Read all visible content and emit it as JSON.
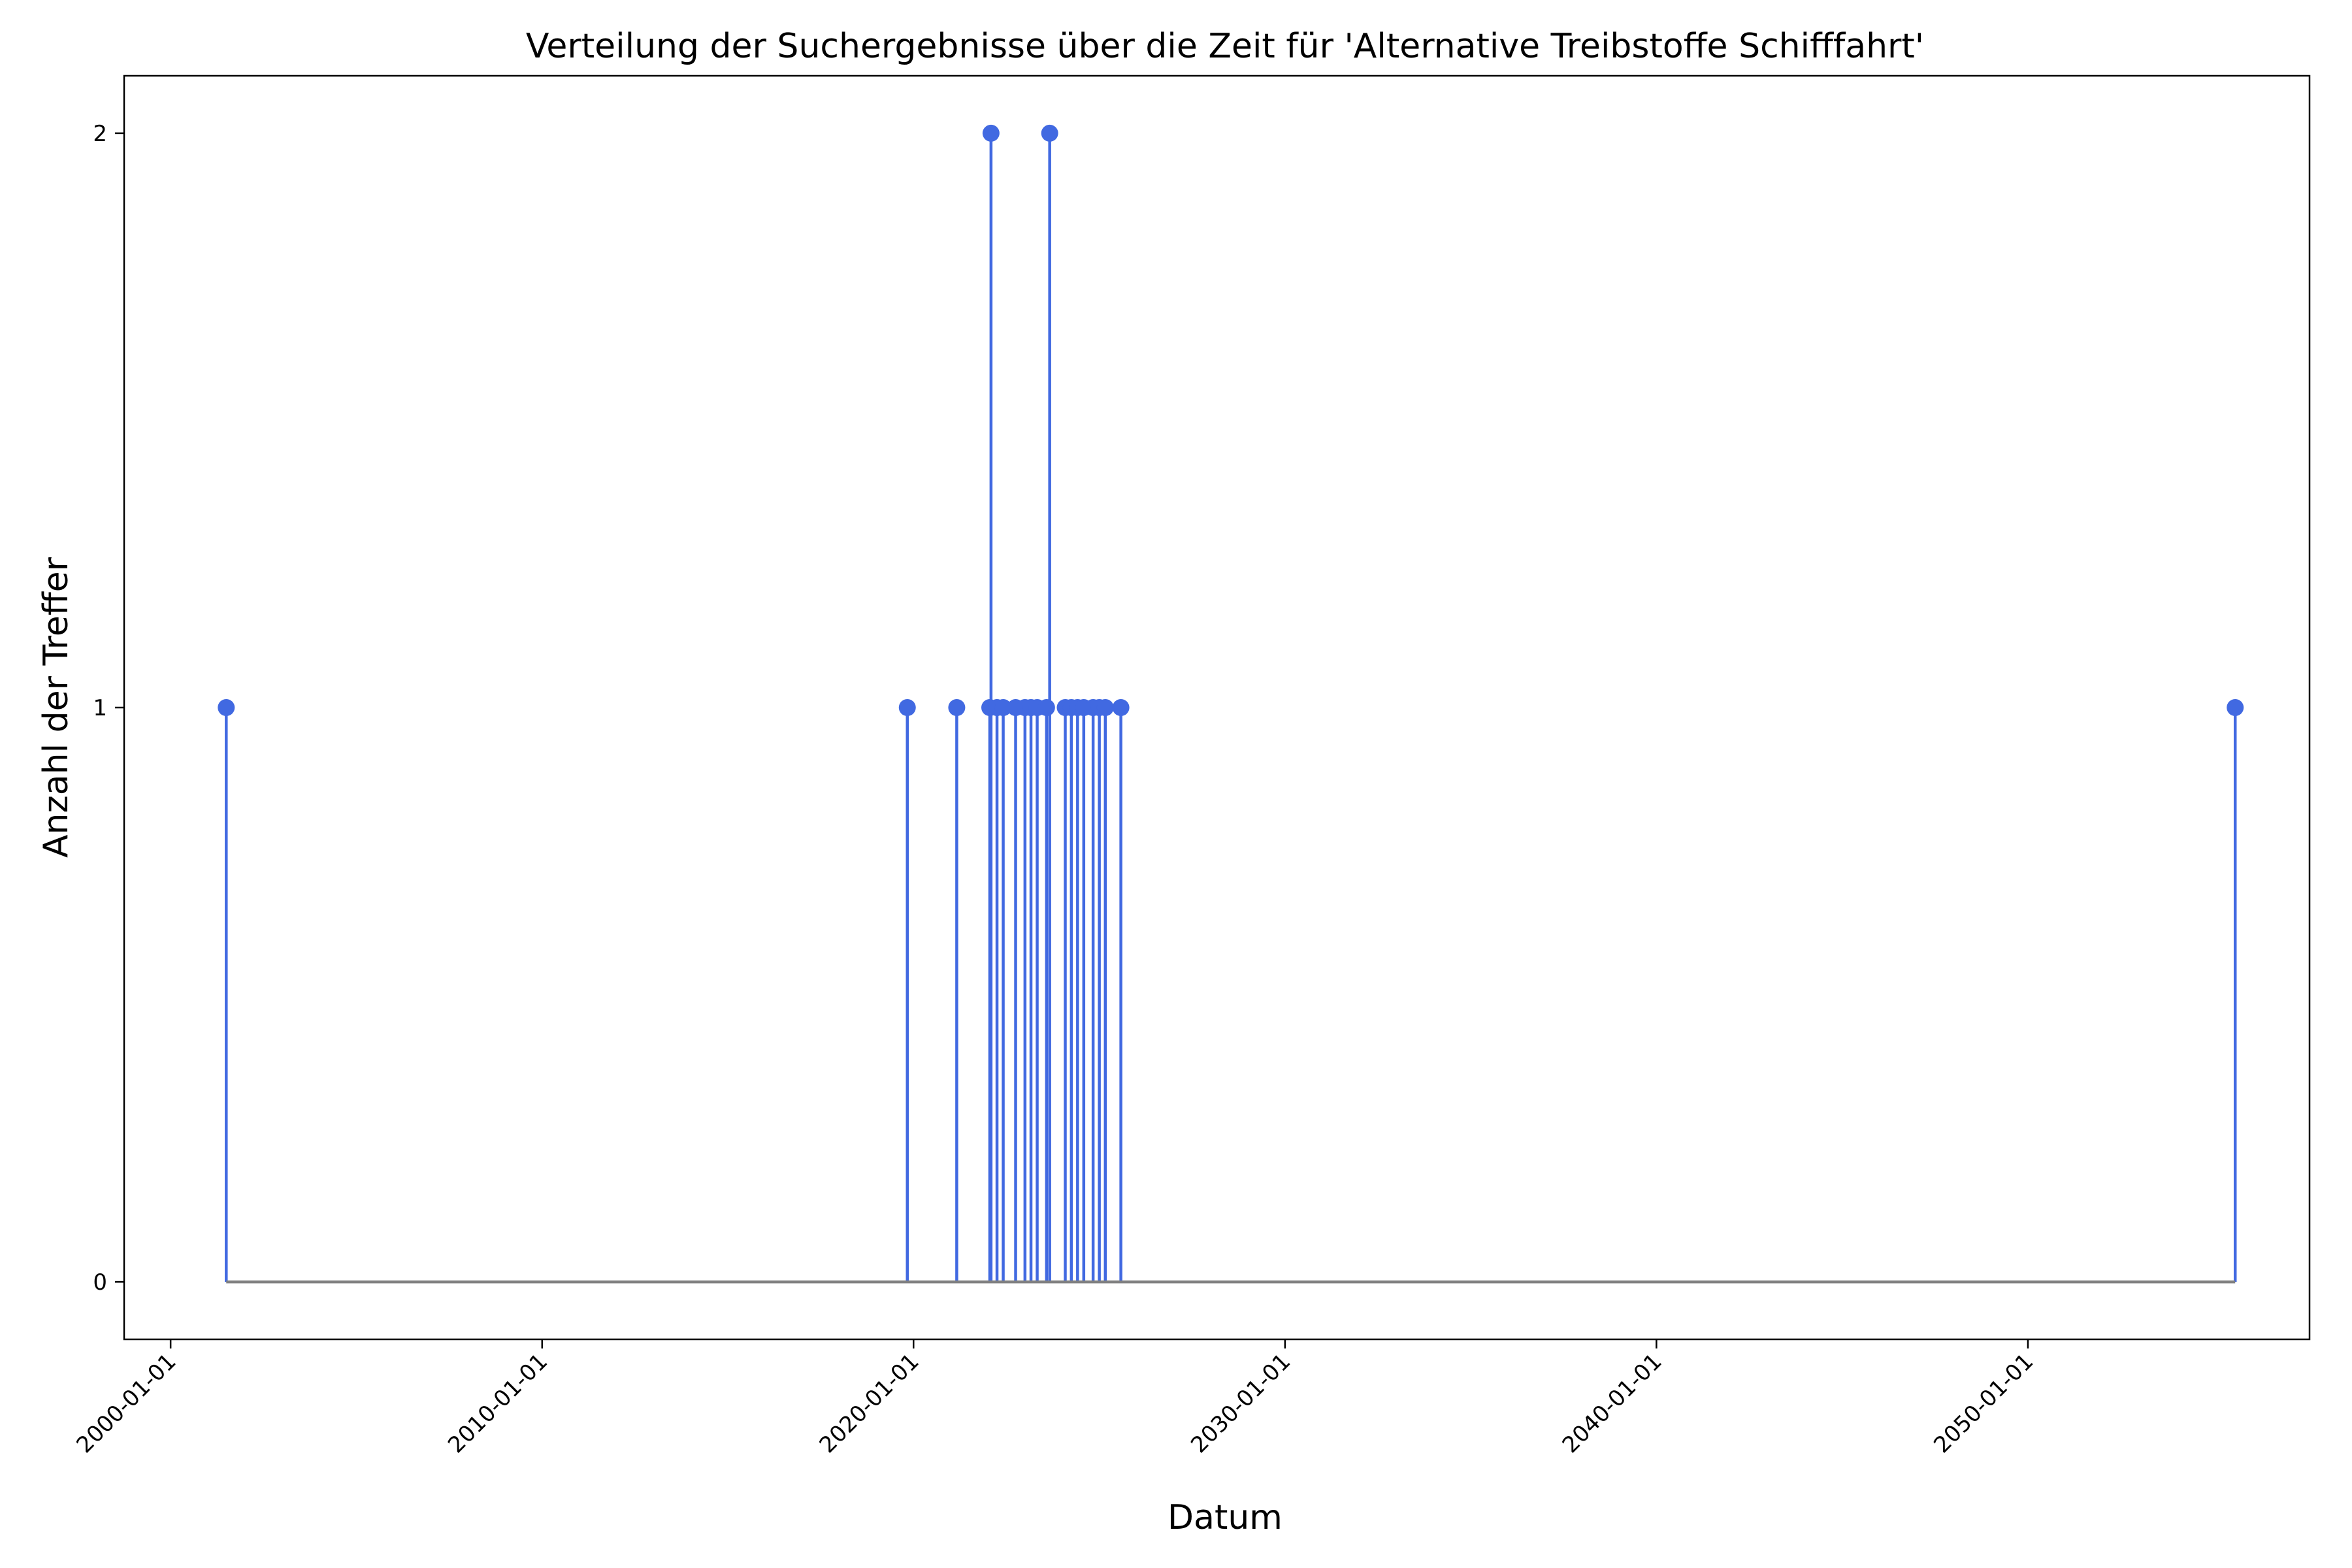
{
  "chart_data": {
    "type": "stem",
    "title": "Verteilung der Suchergebnisse über die Zeit für 'Alternative Treibstoffe Schifffahrt'",
    "xlabel": "Datum",
    "ylabel": "Anzahl der Treffer",
    "x_ticks": [
      "2000-01-01",
      "2010-01-01",
      "2020-01-01",
      "2030-01-01",
      "2040-01-01",
      "2050-01-01"
    ],
    "y_ticks": [
      0,
      1,
      2
    ],
    "xlim": [
      "1998-10-01",
      "2057-08-01"
    ],
    "ylim": [
      -0.1,
      2.1
    ],
    "grid": false,
    "colors": {
      "stem": "#4169e1",
      "baseline": "#808080"
    },
    "series": [
      {
        "x": [
          "2001-07-01",
          "2019-11-01",
          "2021-03-01",
          "2022-01-20",
          "2022-02-01",
          "2022-04-01",
          "2022-06-01",
          "2022-10-01",
          "2023-01-01",
          "2023-03-01",
          "2023-05-01",
          "2023-08-01",
          "2023-09-01",
          "2024-02-01",
          "2024-04-01",
          "2024-06-01",
          "2024-08-01",
          "2024-11-01",
          "2025-01-01",
          "2025-03-01",
          "2025-08-01",
          "2055-08-01"
        ],
        "y": [
          1,
          1,
          1,
          1,
          2,
          1,
          1,
          1,
          1,
          1,
          1,
          1,
          2,
          1,
          1,
          1,
          1,
          1,
          1,
          1,
          1,
          1
        ]
      }
    ]
  }
}
